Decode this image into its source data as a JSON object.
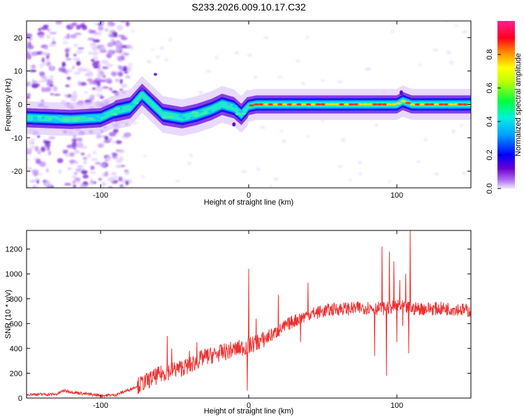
{
  "title": "S233.2026.009.10.17.C32",
  "chart_data": [
    {
      "type": "heatmap",
      "name": "spectrogram",
      "xlabel": "Height of straight line (km)",
      "ylabel": "Frequency (Hz)",
      "xlim": [
        -150,
        150
      ],
      "ylim": [
        -25,
        25
      ],
      "x_ticks": [
        -100,
        0,
        100
      ],
      "x_tick_labels": [
        "-100",
        "0",
        "100"
      ],
      "y_ticks": [
        -20,
        -10,
        0,
        10,
        20
      ],
      "y_tick_labels": [
        "-20",
        "-10",
        "0",
        "10",
        "20"
      ],
      "colorbar": {
        "label": "Normalized spectral amplitude",
        "range": [
          0,
          1
        ],
        "ticks": [
          0.0,
          0.2,
          0.4,
          0.6,
          0.8
        ],
        "tick_labels": [
          "0.0",
          "0.2",
          "0.4",
          "0.6",
          "0.8"
        ],
        "colors": [
          "#e6d6ff",
          "#b070f0",
          "#6a00d0",
          "#0000ff",
          "#00d8ff",
          "#00ff40",
          "#f0f000",
          "#ff8000",
          "#ff0040",
          "#ff20c0"
        ]
      },
      "trace_centerline": [
        {
          "x": -150,
          "f": -4
        },
        {
          "x": -120,
          "f": -4.5
        },
        {
          "x": -100,
          "f": -4
        },
        {
          "x": -90,
          "f": -2
        },
        {
          "x": -80,
          "f": -1
        },
        {
          "x": -72,
          "f": 3
        },
        {
          "x": -65,
          "f": 0
        },
        {
          "x": -58,
          "f": -3
        },
        {
          "x": -45,
          "f": -4
        },
        {
          "x": -35,
          "f": -3
        },
        {
          "x": -25,
          "f": -1.5
        },
        {
          "x": -18,
          "f": 0
        },
        {
          "x": -10,
          "f": -1
        },
        {
          "x": -5,
          "f": -3
        },
        {
          "x": 0,
          "f": -0.5
        },
        {
          "x": 5,
          "f": 0
        },
        {
          "x": 50,
          "f": 0
        },
        {
          "x": 100,
          "f": 0
        },
        {
          "x": 104,
          "f": 1
        },
        {
          "x": 110,
          "f": 0
        },
        {
          "x": 150,
          "f": 0
        }
      ]
    },
    {
      "type": "line",
      "name": "snr",
      "color": "#ee3030",
      "xlabel": "Height of straight line (km)",
      "ylabel": "SNR (10 * v/v)",
      "xlim": [
        -150,
        150
      ],
      "ylim": [
        0,
        1350
      ],
      "x_ticks": [
        -100,
        0,
        100
      ],
      "x_tick_labels": [
        "-100",
        "0",
        "100"
      ],
      "y_ticks": [
        0,
        200,
        400,
        600,
        800,
        1000,
        1200
      ],
      "y_tick_labels": [
        "0",
        "200",
        "400",
        "600",
        "800",
        "1000",
        "1200"
      ],
      "baseline": [
        {
          "x": -150,
          "y": 30
        },
        {
          "x": -130,
          "y": 30
        },
        {
          "x": -125,
          "y": 60
        },
        {
          "x": -115,
          "y": 40
        },
        {
          "x": -100,
          "y": 20
        },
        {
          "x": -90,
          "y": 25
        },
        {
          "x": -80,
          "y": 70
        },
        {
          "x": -70,
          "y": 130
        },
        {
          "x": -60,
          "y": 190
        },
        {
          "x": -50,
          "y": 230
        },
        {
          "x": -40,
          "y": 260
        },
        {
          "x": -30,
          "y": 330
        },
        {
          "x": -20,
          "y": 360
        },
        {
          "x": -10,
          "y": 390
        },
        {
          "x": 0,
          "y": 420
        },
        {
          "x": 10,
          "y": 470
        },
        {
          "x": 20,
          "y": 540
        },
        {
          "x": 30,
          "y": 620
        },
        {
          "x": 40,
          "y": 670
        },
        {
          "x": 50,
          "y": 700
        },
        {
          "x": 60,
          "y": 720
        },
        {
          "x": 70,
          "y": 720
        },
        {
          "x": 80,
          "y": 730
        },
        {
          "x": 90,
          "y": 720
        },
        {
          "x": 100,
          "y": 740
        },
        {
          "x": 110,
          "y": 720
        },
        {
          "x": 120,
          "y": 720
        },
        {
          "x": 130,
          "y": 720
        },
        {
          "x": 140,
          "y": 720
        },
        {
          "x": 150,
          "y": 700
        }
      ],
      "spikes": [
        {
          "x": -55,
          "y": 500
        },
        {
          "x": -52,
          "y": 400
        },
        {
          "x": -40,
          "y": 380
        },
        {
          "x": -35,
          "y": 450
        },
        {
          "x": 0,
          "y": 1040
        },
        {
          "x": -1,
          "y": 60
        },
        {
          "x": 5,
          "y": 640
        },
        {
          "x": 20,
          "y": 830
        },
        {
          "x": 40,
          "y": 930
        },
        {
          "x": 35,
          "y": 450
        },
        {
          "x": 85,
          "y": 340
        },
        {
          "x": 90,
          "y": 1220
        },
        {
          "x": 93,
          "y": 180
        },
        {
          "x": 95,
          "y": 1180
        },
        {
          "x": 98,
          "y": 1100
        },
        {
          "x": 100,
          "y": 450
        },
        {
          "x": 102,
          "y": 950
        },
        {
          "x": 104,
          "y": 580
        },
        {
          "x": 106,
          "y": 1000
        },
        {
          "x": 108,
          "y": 360
        },
        {
          "x": 109,
          "y": 1350
        }
      ]
    }
  ]
}
